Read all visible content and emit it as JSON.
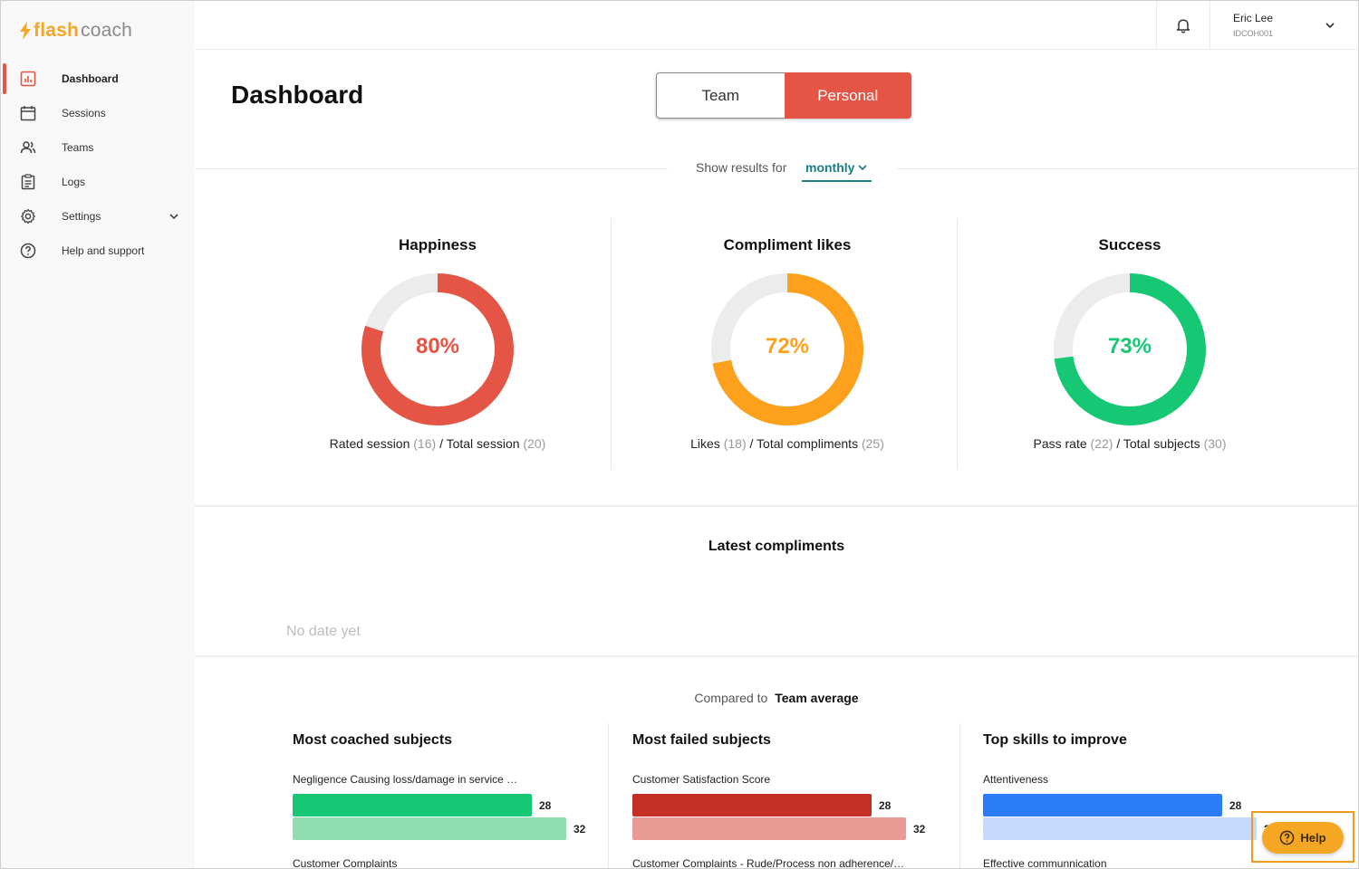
{
  "brand": {
    "flash": "flash",
    "coach": "coach",
    "accent": "#f5a623"
  },
  "sidebar": {
    "items": [
      {
        "label": "Dashboard",
        "icon": "bar-chart-icon",
        "active": true
      },
      {
        "label": "Sessions",
        "icon": "calendar-icon"
      },
      {
        "label": "Teams",
        "icon": "users-icon"
      },
      {
        "label": "Logs",
        "icon": "clipboard-icon"
      },
      {
        "label": "Settings",
        "icon": "gear-icon"
      },
      {
        "label": "Help and support",
        "icon": "question-circle-icon"
      }
    ]
  },
  "header": {
    "user_name": "Eric Lee",
    "user_id": "IDCOH001"
  },
  "main": {
    "title": "Dashboard",
    "toggle": {
      "team": "Team",
      "personal": "Personal",
      "selected": "Personal"
    },
    "results": {
      "label": "Show results for",
      "value": "monthly"
    },
    "stats": [
      {
        "title": "Happiness",
        "percent": 80,
        "percent_label": "80%",
        "color": "#e45546",
        "label_a": "Rated session",
        "value_a": "(16)",
        "label_b": "/ Total session",
        "value_b": "(20)"
      },
      {
        "title": "Compliment likes",
        "percent": 72,
        "percent_label": "72%",
        "color": "#fda11c",
        "label_a": "Likes",
        "value_a": "(18)",
        "label_b": "/ Total compliments",
        "value_b": "(25)"
      },
      {
        "title": "Success",
        "percent": 73,
        "percent_label": "73%",
        "color": "#16c874",
        "label_a": "Pass rate",
        "value_a": "(22)",
        "label_b": "/ Total subjects",
        "value_b": "(30)"
      }
    ],
    "compliments": {
      "title": "Latest compliments",
      "empty": "No date yet"
    },
    "compare": {
      "label": "Compared to",
      "value": "Team average"
    },
    "columns": [
      {
        "title": "Most coached subjects",
        "color": "#16c874",
        "light": "#8fdeb2",
        "items": [
          {
            "label": "Negligence Causing loss/damage in service …",
            "value": 28,
            "compare": 32
          },
          {
            "label": "Customer Complaints"
          }
        ]
      },
      {
        "title": "Most failed subjects",
        "color": "#c42f26",
        "light": "#e99a94",
        "items": [
          {
            "label": "Customer Satisfaction Score",
            "value": 28,
            "compare": 32
          },
          {
            "label": "Customer Complaints - Rude/Process non adherence/…"
          }
        ]
      },
      {
        "title": "Top skills to improve",
        "color": "#2a7cf7",
        "light": "#c6dafc",
        "items": [
          {
            "label": "Attentiveness",
            "value": 28,
            "compare": 32
          },
          {
            "label": "Effective communnication"
          }
        ]
      }
    ]
  },
  "help": {
    "label": "Help"
  }
}
